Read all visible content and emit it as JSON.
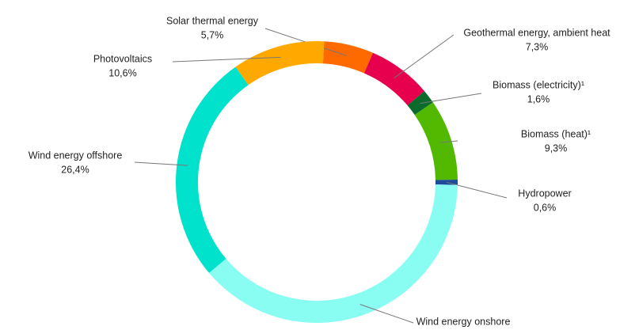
{
  "chart_data": {
    "type": "donut",
    "categories": [
      "Solar thermal energy",
      "Geothermal energy, ambient heat",
      "Biomass (electricity)¹",
      "Biomass (heat)¹",
      "Hydropower",
      "Wind energy onshore",
      "Wind energy offshore",
      "Photovoltaics"
    ],
    "values": [
      5.7,
      7.3,
      1.6,
      9.3,
      0.6,
      38.5,
      26.4,
      10.6
    ],
    "value_labels": [
      "5,7%",
      "7,3%",
      "1,6%",
      "9,3%",
      "0,6%",
      null,
      "26,4%",
      "10,6%"
    ],
    "colors": [
      "#ff6a00",
      "#e6004e",
      "#0b6b2c",
      "#52b900",
      "#1e4c9a",
      "#8afdf3",
      "#00e2cb",
      "#ffa900"
    ]
  }
}
